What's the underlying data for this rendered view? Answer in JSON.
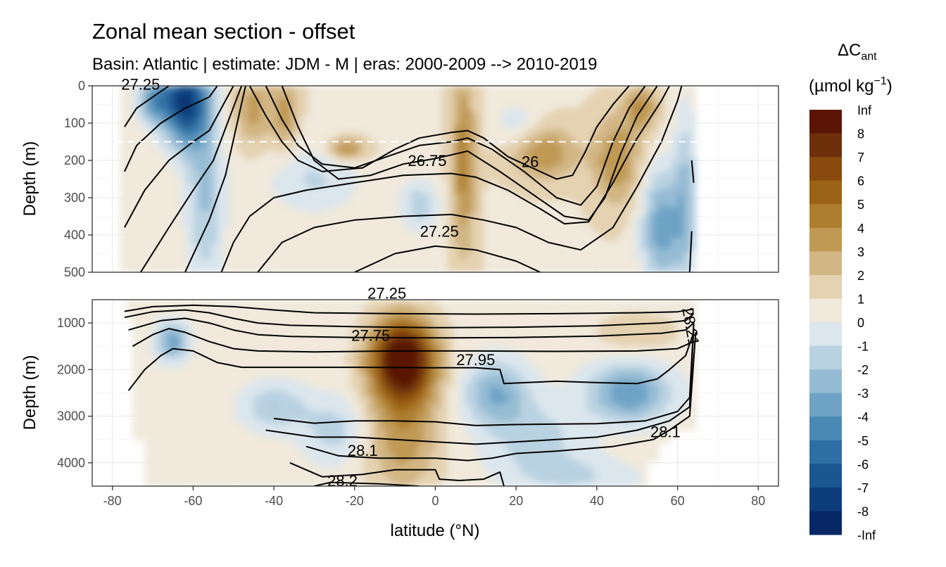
{
  "chart_data": {
    "type": "heatmap",
    "title": "Zonal mean section - offset",
    "subtitle": "Basin: Atlantic | estimate: JDM - M | eras: 2000-2009 --> 2010-2019",
    "xlabel": "latitude (°N)",
    "xlim": [
      -85,
      85
    ],
    "x_ticks": [
      -80,
      -60,
      -40,
      -20,
      0,
      20,
      40,
      60,
      80
    ],
    "x_tick_labels": [
      "-80",
      "-60",
      "-40",
      "-20",
      "0",
      "20",
      "40",
      "60",
      "80"
    ],
    "panels": [
      {
        "name": "upper",
        "ylabel": "Depth (m)",
        "ylim": [
          500,
          0
        ],
        "y_ticks": [
          0,
          100,
          200,
          300,
          400,
          500
        ],
        "y_tick_labels": [
          "0",
          "100",
          "200",
          "300",
          "400",
          "500"
        ],
        "reference_depth": 150,
        "contour_labels": [
          {
            "text": "26.75",
            "lat": -2,
            "depth": 215
          },
          {
            "text": "26",
            "lat": 23.5,
            "depth": 218
          },
          {
            "text": "27.25",
            "lat": 1,
            "depth": 405
          },
          {
            "text": "27.25",
            "lat": -73,
            "depth": 10
          }
        ]
      },
      {
        "name": "lower",
        "ylabel": "Depth (m)",
        "ylim": [
          4500,
          500
        ],
        "y_ticks": [
          1000,
          2000,
          3000,
          4000
        ],
        "y_tick_labels": [
          "1000",
          "2000",
          "3000",
          "4000"
        ],
        "contour_labels": [
          {
            "text": "27.25",
            "lat": -12,
            "depth": 480
          },
          {
            "text": "27.75",
            "lat": -16,
            "depth": 1380
          },
          {
            "text": "27.95",
            "lat": 10,
            "depth": 1900
          },
          {
            "text": "28.1",
            "lat": -18,
            "depth": 3850
          },
          {
            "text": "28.2",
            "lat": -23,
            "depth": 4500
          },
          {
            "text": "28.1",
            "lat": 57,
            "depth": 3450
          },
          {
            "text": "28.21",
            "lat": 62,
            "depth": 1100
          }
        ]
      }
    ],
    "legend": {
      "title_main": "ΔC",
      "title_sub": "ant",
      "unit": "(µmol kg",
      "unit_exp": "−1",
      "unit_end": ")",
      "position": "right",
      "labels": [
        "Inf",
        "8",
        "7",
        "6",
        "5",
        "4",
        "3",
        "2",
        "1",
        "0",
        "-1",
        "-2",
        "-3",
        "-4",
        "-5",
        "-6",
        "-7",
        "-8",
        "-Inf"
      ],
      "colors": [
        "#5a1505",
        "#6e300b",
        "#884a0e",
        "#9b6315",
        "#ad7e2d",
        "#c09a55",
        "#d2b684",
        "#e4d2b0",
        "#f0e9dc",
        "#dbe6ed",
        "#b9d2e1",
        "#95bcd4",
        "#6ea3c5",
        "#4b89b5",
        "#2e6fa3",
        "#1a5690",
        "#0e3e7a",
        "#082865"
      ]
    },
    "grid": true
  }
}
